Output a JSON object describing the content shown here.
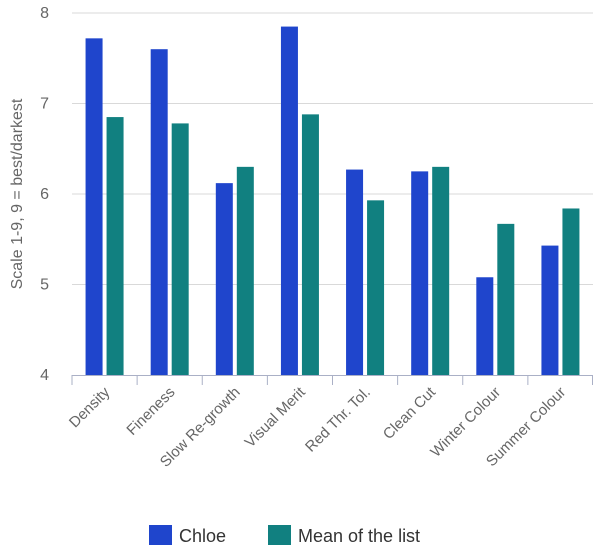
{
  "chart_data": {
    "type": "bar",
    "title": "",
    "xlabel": "",
    "ylabel": "Scale 1-9, 9 = best/darkest",
    "ylim": [
      4,
      8
    ],
    "yticks": [
      4,
      5,
      6,
      7,
      8
    ],
    "grid": true,
    "legend_position": "bottom",
    "categories": [
      "Density",
      "Fineness",
      "Slow Re-growth",
      "Visual Merit",
      "Red Thr. Tol.",
      "Clean Cut",
      "Winter Colour",
      "Summer Colour"
    ],
    "series": [
      {
        "name": "Chloe",
        "color": "#1f45cc",
        "values": [
          7.72,
          7.6,
          6.12,
          7.85,
          6.27,
          6.25,
          5.08,
          5.43
        ]
      },
      {
        "name": "Mean of the list",
        "color": "#118080",
        "values": [
          6.85,
          6.78,
          6.3,
          6.88,
          5.93,
          6.3,
          5.67,
          5.84
        ]
      }
    ]
  }
}
